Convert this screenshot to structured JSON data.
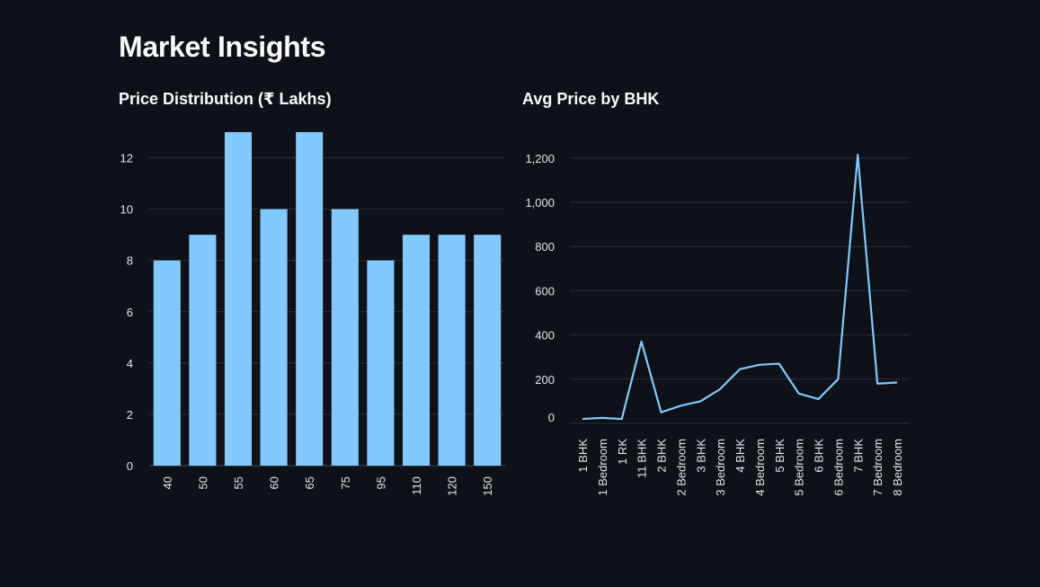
{
  "page": {
    "title": "Market Insights"
  },
  "chart_data": [
    {
      "type": "bar",
      "title": "Price Distribution (₹ Lakhs)",
      "categories": [
        "40",
        "50",
        "55",
        "60",
        "65",
        "75",
        "95",
        "110",
        "120",
        "150"
      ],
      "values": [
        8,
        9,
        13,
        10,
        13,
        10,
        8,
        9,
        9,
        9
      ],
      "ylim": [
        0,
        13
      ],
      "yticks": [
        0,
        2,
        4,
        6,
        8,
        10,
        12
      ],
      "xlabel": "",
      "ylabel": "",
      "grid": true,
      "color": "#83c9ff"
    },
    {
      "type": "line",
      "title": "Avg Price by BHK",
      "categories": [
        "1 BHK",
        "1 Bedroom",
        "1 RK",
        "11 BHK",
        "2 BHK",
        "2 Bedroom",
        "3 BHK",
        "3 Bedroom",
        "4 BHK",
        "4 Bedroom",
        "5 BHK",
        "5 Bedroom",
        "6 BHK",
        "6 Bedroom",
        "7 BHK",
        "7 Bedroom",
        "8 Bedroom"
      ],
      "values": [
        20,
        25,
        20,
        370,
        50,
        80,
        100,
        155,
        245,
        265,
        270,
        135,
        110,
        200,
        1215,
        180,
        185
      ],
      "ylim": [
        0,
        1240
      ],
      "yticks": [
        0,
        200,
        400,
        600,
        800,
        1000,
        1200
      ],
      "ytick_labels": [
        "0",
        "200",
        "400",
        "600",
        "800",
        "1,000",
        "1,200"
      ],
      "xlabel": "",
      "ylabel": "",
      "grid": true,
      "color": "#83c9ff"
    }
  ]
}
